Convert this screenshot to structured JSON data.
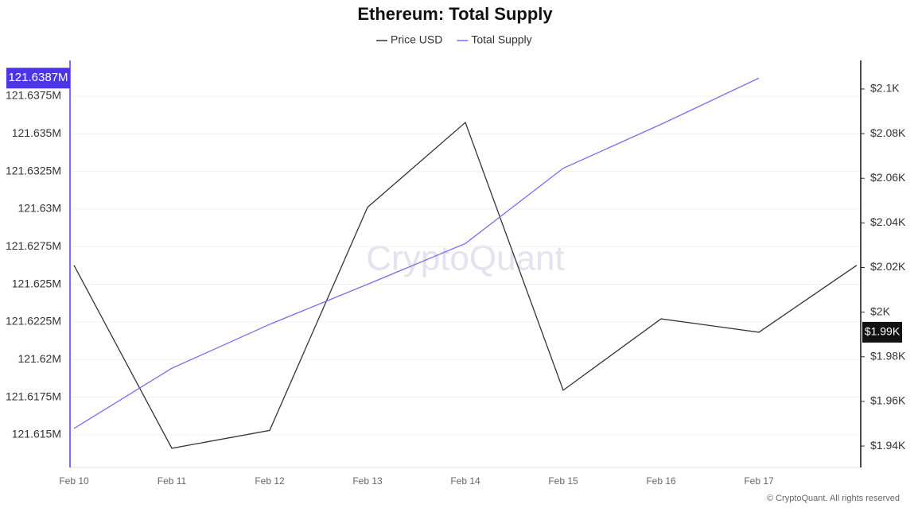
{
  "chart_data": {
    "type": "line",
    "title": "Ethereum: Total Supply",
    "watermark": "CryptoQuant",
    "footer": "© CryptoQuant. All rights reserved",
    "categories": [
      "Feb 10",
      "Feb 11",
      "Feb 12",
      "Feb 13",
      "Feb 14",
      "Feb 15",
      "Feb 16",
      "Feb 17",
      null
    ],
    "series": [
      {
        "name": "Price USD",
        "color": "#333333",
        "axis": "y2",
        "values": [
          2021,
          1939,
          1947,
          2047,
          2085,
          1965,
          1997,
          1991,
          2021
        ]
      },
      {
        "name": "Total Supply",
        "color": "#7b6cf0",
        "values": [
          121.61542,
          121.61942,
          121.62234,
          121.625,
          121.62771,
          121.63271,
          121.63563,
          121.6387,
          null
        ]
      }
    ],
    "ylim": [
      121.61283,
      121.63977
    ],
    "yticks": [
      {
        "value": 121.615,
        "label": "121.615M"
      },
      {
        "value": 121.6175,
        "label": "121.6175M"
      },
      {
        "value": 121.62,
        "label": "121.62M"
      },
      {
        "value": 121.6225,
        "label": "121.6225M"
      },
      {
        "value": 121.625,
        "label": "121.625M"
      },
      {
        "value": 121.6275,
        "label": "121.6275M"
      },
      {
        "value": 121.63,
        "label": "121.63M"
      },
      {
        "value": 121.6325,
        "label": "121.6325M"
      },
      {
        "value": 121.635,
        "label": "121.635M"
      },
      {
        "value": 121.6375,
        "label": "121.6375M"
      }
    ],
    "y2lim": [
      1930.4,
      2112.1
    ],
    "y2ticks": [
      {
        "value": 1940,
        "label": "$1.94K"
      },
      {
        "value": 1960,
        "label": "$1.96K"
      },
      {
        "value": 1980,
        "label": "$1.98K"
      },
      {
        "value": 2000,
        "label": "$2K"
      },
      {
        "value": 2020,
        "label": "$2.02K"
      },
      {
        "value": 2040,
        "label": "$2.04K"
      },
      {
        "value": 2060,
        "label": "$2.06K"
      },
      {
        "value": 2080,
        "label": "$2.08K"
      },
      {
        "value": 2100,
        "label": "$2.1K"
      }
    ],
    "grid": true,
    "y_badge": {
      "value": 121.6387,
      "label": "121.6387M"
    },
    "y2_badge": {
      "value": 1991,
      "label": "$1.99K"
    }
  }
}
